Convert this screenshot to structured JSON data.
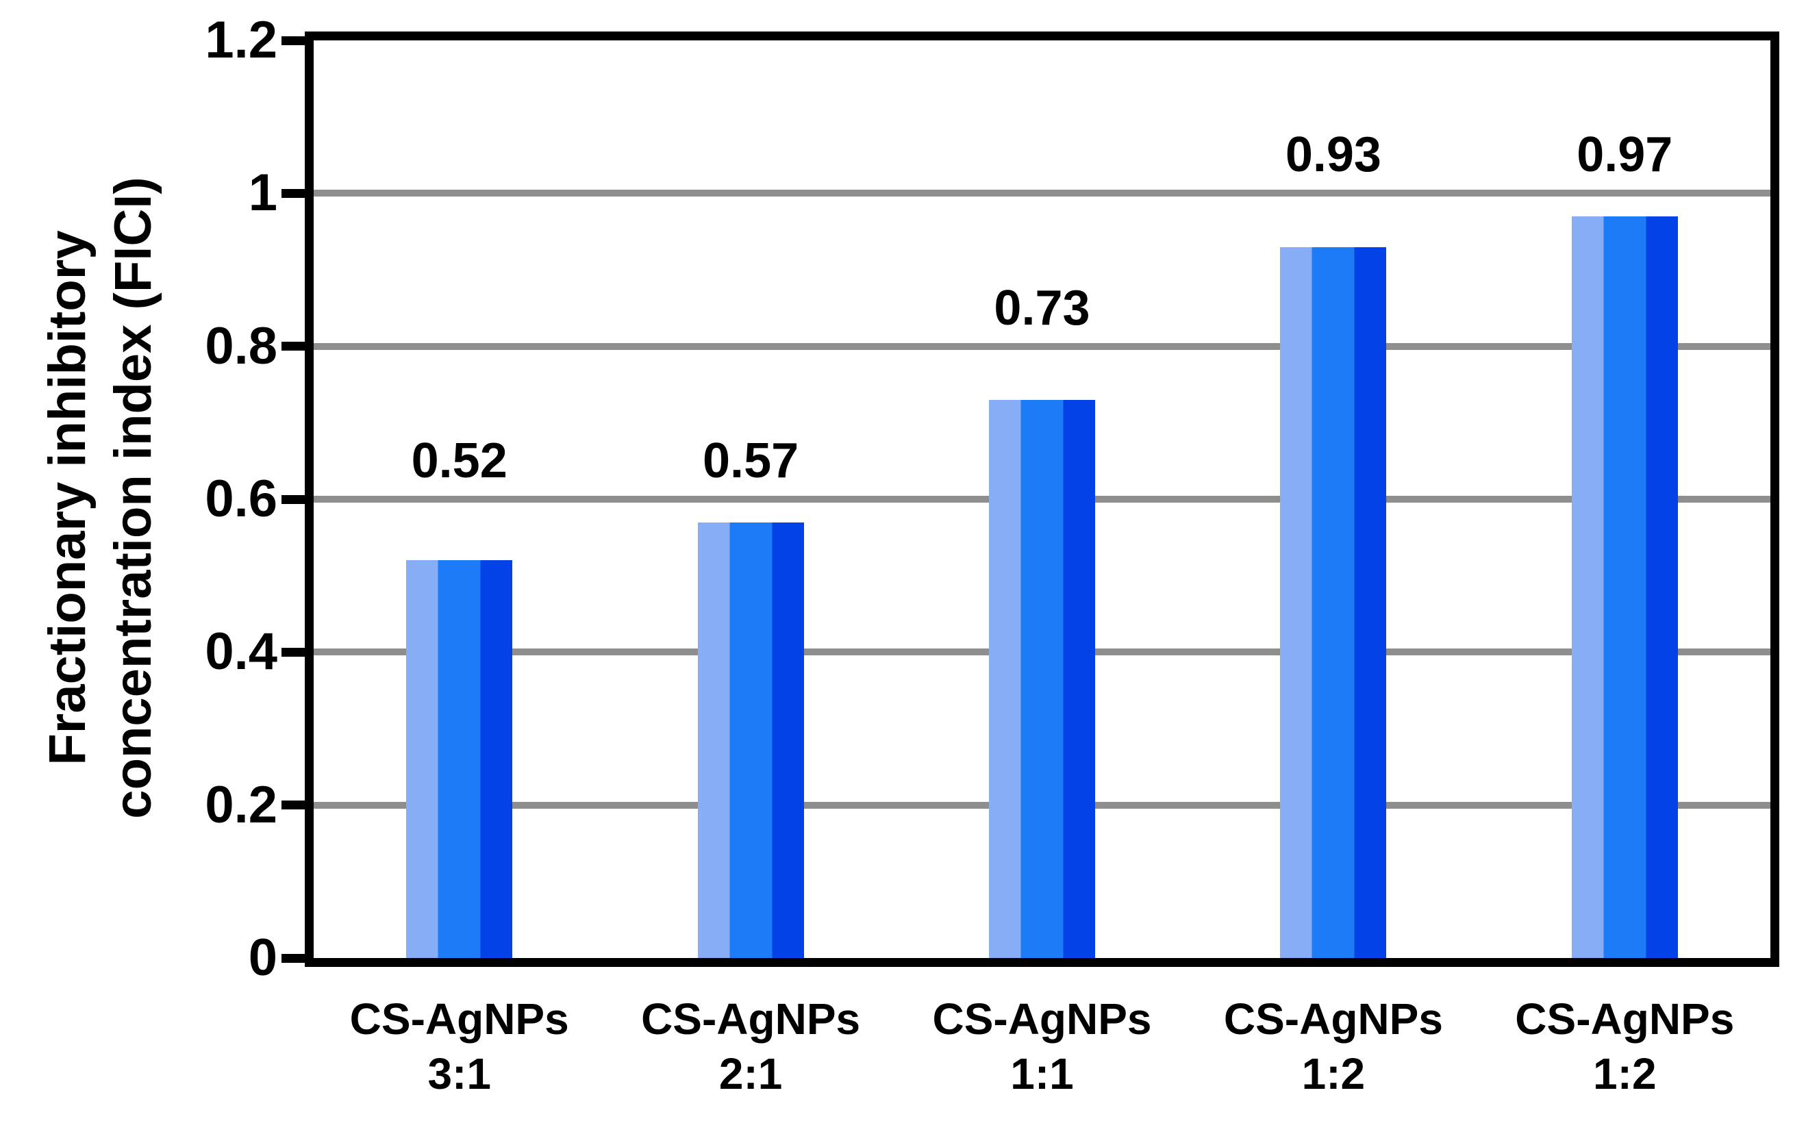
{
  "chart_data": {
    "type": "bar",
    "title": "",
    "y_axis_title_lines": [
      "Fractionary inhibitory",
      "concentration index (FICI)"
    ],
    "categories": [
      {
        "line1": "CS-AgNPs",
        "line2": "3:1"
      },
      {
        "line1": "CS-AgNPs",
        "line2": "2:1"
      },
      {
        "line1": "CS-AgNPs",
        "line2": "1:1"
      },
      {
        "line1": "CS-AgNPs",
        "line2": "1:2"
      },
      {
        "line1": "CS-AgNPs",
        "line2": "1:2"
      }
    ],
    "values": [
      0.52,
      0.57,
      0.73,
      0.93,
      0.97
    ],
    "value_labels": [
      "0.52",
      "0.57",
      "0.73",
      "0.93",
      "0.97"
    ],
    "ylim": [
      0,
      1.2
    ],
    "ytick_values": [
      0,
      0.2,
      0.4,
      0.6,
      0.8,
      1,
      1.2
    ],
    "ytick_labels": [
      "0",
      "0.2",
      "0.4",
      "0.6",
      "0.8",
      "1",
      "1.2"
    ],
    "gridline_values": [
      0.2,
      0.4,
      0.6,
      0.8,
      1
    ],
    "grid": "horizontal",
    "legend_position": "none",
    "colors": {
      "bar_stripe_light": "#87ADF7",
      "bar_stripe_mid": "#1E7BF7",
      "bar_stripe_dark": "#0342E7",
      "gridline": "#8E8E8E",
      "axis": "#000000",
      "background": "#FFFFFF",
      "text": "#000000"
    }
  }
}
